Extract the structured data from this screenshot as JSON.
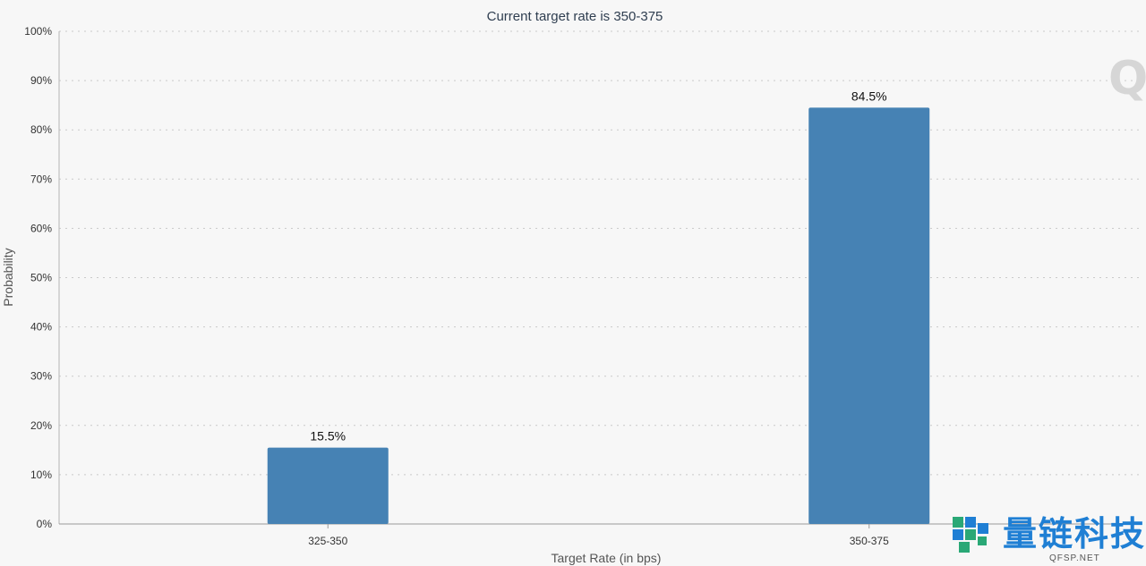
{
  "chart_data": {
    "type": "bar",
    "title": "Current target rate is 350-375",
    "xlabel": "Target Rate (in bps)",
    "ylabel": "Probability",
    "categories": [
      "325-350",
      "350-375"
    ],
    "values": [
      15.5,
      84.5
    ],
    "value_labels": [
      "15.5%",
      "84.5%"
    ],
    "ylim": [
      0,
      100
    ],
    "yticks": [
      "0%",
      "10%",
      "20%",
      "30%",
      "40%",
      "50%",
      "60%",
      "70%",
      "80%",
      "90%",
      "100%"
    ],
    "grid": true,
    "bar_color": "#4682b4"
  },
  "watermark": {
    "brand_cn": "量链科技",
    "brand_en": "QFSP.NET",
    "logo_letter": "Q"
  }
}
